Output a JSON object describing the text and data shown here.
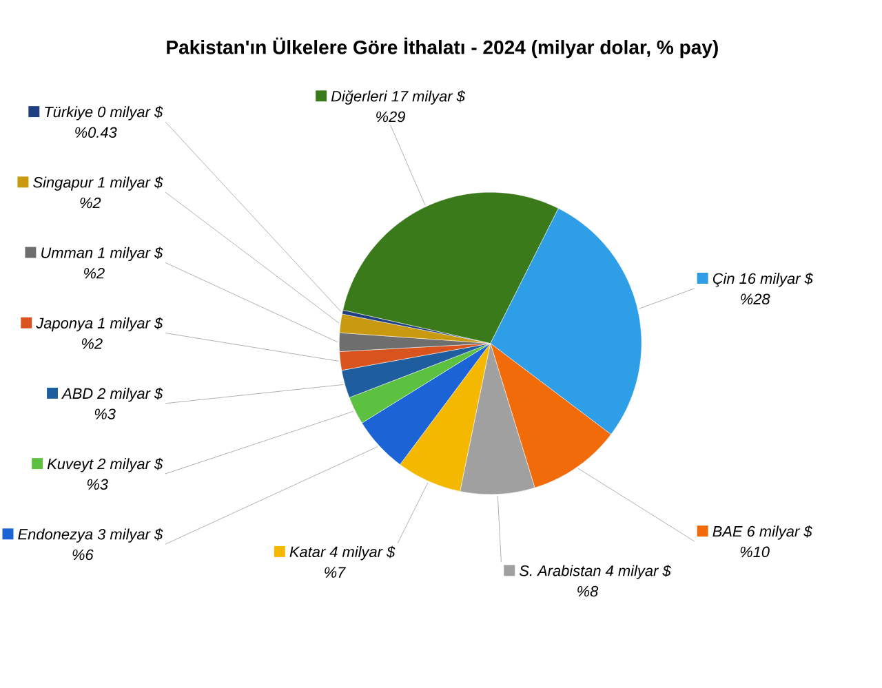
{
  "chart_data": {
    "type": "pie",
    "title": "Pakistan'ın Ülkelere Göre İthalatı - 2024 (milyar dolar, % pay)",
    "categories": [
      "Çin 16 milyar $",
      "BAE 6 milyar $",
      "S. Arabistan 4 milyar $",
      "Katar 4 milyar $",
      "Endonezya 3 milyar $",
      "Kuveyt 2 milyar $",
      "ABD 2 milyar $",
      "Japonya 1 milyar $",
      "Umman 1 milyar $",
      "Singapur 1 milyar $",
      "Türkiye 0 milyar $",
      "Diğerleri 17 milyar $"
    ],
    "values": [
      28,
      10,
      8,
      7,
      6,
      3,
      3,
      2,
      2,
      2,
      0.43,
      29
    ],
    "value_labels": [
      "%28",
      "%10",
      "%8",
      "%7",
      "%6",
      "%3",
      "%3",
      "%2",
      "%2",
      "%2",
      "%0.43",
      "%29"
    ],
    "legend": "left",
    "colors": [
      "#2e9ee6",
      "#f26b0a",
      "#a0a0a0",
      "#f5b800",
      "#1c64d6",
      "#5cc040",
      "#1f5e9e",
      "#d9531e",
      "#6e6e6e",
      "#c99a10",
      "#1f3f80",
      "#3a7a1a"
    ]
  }
}
